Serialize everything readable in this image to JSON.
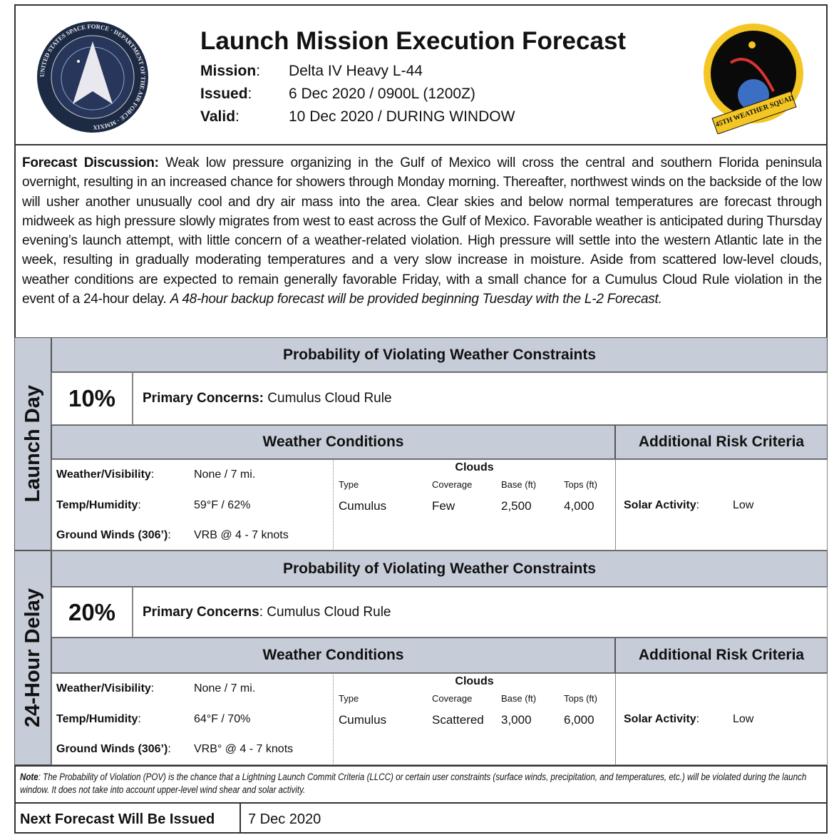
{
  "header": {
    "title": "Launch Mission Execution Forecast",
    "mission_label": "Mission",
    "mission": "Delta IV Heavy L-44",
    "issued_label": "Issued",
    "issued": "6 Dec 2020 / 0900L (1200Z)",
    "valid_label": "Valid",
    "valid": "10 Dec 2020 / DURING WINDOW",
    "left_logo_text": "UNITED STATES SPACE FORCE · DEPARTMENT OF THE AIR FORCE · MMXIX",
    "right_logo_text": "45TH WEATHER SQUADRON"
  },
  "discussion": {
    "label": "Forecast Discussion:",
    "text": " Weak low pressure organizing in the Gulf of Mexico will cross the central and southern Florida peninsula overnight, resulting in an increased chance for showers through Monday morning. Thereafter, northwest winds on the backside of the low will usher another unusually cool and dry air mass into the area. Clear skies and below normal temperatures are forecast through midweek as high pressure slowly migrates from west to east across the Gulf of Mexico. Favorable weather is anticipated during Thursday evening’s launch attempt, with little concern of a weather-related violation. High pressure will settle into the western Atlantic late in the week, resulting in gradually moderating temperatures and a very slow increase in moisture. Aside from scattered low-level clouds, weather conditions are expected to remain generally favorable Friday, with a small chance for a Cumulus Cloud Rule violation in the event of a 24-hour delay. ",
    "italic": "A 48-hour backup forecast will be provided beginning Tuesday with the L-2 Forecast."
  },
  "sections": [
    {
      "side": "Launch Day",
      "prob_header": "Probability of Violating Weather Constraints",
      "percent": "10%",
      "concerns_label": "Primary Concerns:",
      "concerns": " Cumulus Cloud Rule",
      "wc_header": "Weather Conditions",
      "arc_header": "Additional Risk Criteria",
      "wv_label": "Weather/Visibility",
      "wv": "None / 7 mi.",
      "th_label": "Temp/Humidity",
      "th": "59°F / 62%",
      "gw_label": "Ground Winds (306’)",
      "gw": "VRB @ 4 - 7 knots",
      "clouds": "Clouds",
      "type_h": "Type",
      "cov_h": "Coverage",
      "base_h": "Base (ft)",
      "tops_h": "Tops (ft)",
      "type": "Cumulus",
      "cov": "Few",
      "base": "2,500",
      "tops": "4,000",
      "solar_label": "Solar Activity",
      "solar": "Low"
    },
    {
      "side": "24-Hour Delay",
      "prob_header": "Probability of Violating Weather Constraints",
      "percent": "20%",
      "concerns_label": "Primary Concerns",
      "concerns": ": Cumulus Cloud Rule",
      "wc_header": "Weather Conditions",
      "arc_header": "Additional Risk Criteria",
      "wv_label": "Weather/Visibility",
      "wv": "None / 7 mi.",
      "th_label": "Temp/Humidity",
      "th": "64°F / 70%",
      "gw_label": "Ground Winds (306’)",
      "gw": "VRB° @ 4 - 7 knots",
      "clouds": "Clouds",
      "type_h": "Type",
      "cov_h": "Coverage",
      "base_h": "Base (ft)",
      "tops_h": "Tops (ft)",
      "type": "Cumulus",
      "cov": "Scattered",
      "base": "3,000",
      "tops": "6,000",
      "solar_label": "Solar Activity",
      "solar": "Low"
    }
  ],
  "note": {
    "label": "Note",
    "text": ": The Probability of Violation (POV) is the chance that a Lightning Launch Commit Criteria (LLCC) or certain user constraints (surface winds, precipitation, and temperatures, etc.) will be violated during the launch window. It does not take into account upper-level wind shear and solar activity."
  },
  "next": {
    "label": "Next Forecast Will Be Issued",
    "value": "7 Dec 2020"
  }
}
